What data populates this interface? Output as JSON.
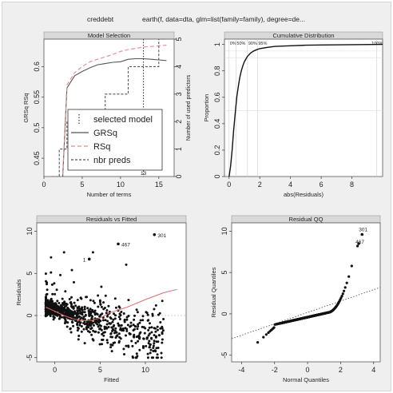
{
  "figure": {
    "title_left": "creddebt",
    "title_right": "earth(f, data=dta, glm=list(family=family), degree=de..."
  },
  "chart_data": [
    {
      "type": "line",
      "title": "Model Selection",
      "xlabel": "Number of terms",
      "ylabel": "GRSq    RSq",
      "y2label": "Number of used predictors",
      "xlim": [
        0,
        17
      ],
      "ylim": [
        0.42,
        0.645
      ],
      "y2lim": [
        0,
        5
      ],
      "xticks": [
        0,
        5,
        10,
        15
      ],
      "yticks": [
        0.45,
        0.5,
        0.55,
        0.6
      ],
      "y2ticks": [
        0,
        1,
        2,
        3,
        4,
        5
      ],
      "selected_terms": 13,
      "selected_label": "13",
      "series": [
        {
          "name": "GRSq",
          "color": "#555555",
          "dash": "solid",
          "x": [
            1,
            2,
            3,
            4,
            5,
            6,
            7,
            8,
            9,
            10,
            11,
            12,
            13,
            14,
            15,
            16
          ],
          "y": [
            0.0,
            0.0,
            0.565,
            0.585,
            0.592,
            0.598,
            0.603,
            0.605,
            0.607,
            0.608,
            0.612,
            0.613,
            0.613,
            0.612,
            0.611,
            0.61
          ]
        },
        {
          "name": "RSq",
          "color": "#e58a8a",
          "dash": "dashed",
          "x": [
            1,
            2,
            3,
            4,
            5,
            6,
            7,
            8,
            9,
            10,
            11,
            12,
            13,
            14,
            15,
            16
          ],
          "y": [
            0.0,
            0.0,
            0.57,
            0.59,
            0.6,
            0.608,
            0.612,
            0.616,
            0.62,
            0.625,
            0.628,
            0.63,
            0.632,
            0.633,
            0.634,
            0.635
          ]
        },
        {
          "name": "nbr preds",
          "color": "#555555",
          "dash": "dotted",
          "x": [
            1,
            2,
            3,
            4,
            5,
            6,
            7,
            8,
            9,
            10,
            11,
            12,
            13,
            14,
            15,
            16
          ],
          "y": [
            0,
            1,
            2,
            2,
            2,
            2,
            2,
            3,
            3,
            3,
            4,
            4,
            4,
            4,
            5,
            5
          ]
        }
      ],
      "legend": {
        "placement": "left",
        "entries": [
          "selected model",
          "GRSq",
          "RSq",
          "nbr preds"
        ]
      }
    },
    {
      "type": "line",
      "title": "Cumulative Distribution",
      "xlabel": "abs(Residuals)",
      "ylabel": "Proportion",
      "xlim": [
        -0.3,
        10
      ],
      "ylim": [
        0,
        1.04
      ],
      "xticks": [
        0,
        2,
        4,
        6,
        8
      ],
      "yticks": [
        0.0,
        0.2,
        0.4,
        0.6,
        0.8,
        1.0
      ],
      "x": [
        0,
        0.1,
        0.2,
        0.3,
        0.4,
        0.5,
        0.6,
        0.7,
        0.8,
        0.9,
        1.0,
        1.2,
        1.4,
        1.6,
        1.8,
        2.0,
        2.5,
        3.0,
        4.0,
        5.0,
        6.0,
        8.0,
        10.0
      ],
      "y": [
        0,
        0.08,
        0.2,
        0.35,
        0.48,
        0.6,
        0.68,
        0.75,
        0.8,
        0.84,
        0.87,
        0.91,
        0.935,
        0.95,
        0.96,
        0.968,
        0.978,
        0.985,
        0.99,
        0.994,
        0.996,
        0.998,
        1.0
      ],
      "quantile_labels": [
        {
          "label": "0%",
          "x": 0
        },
        {
          "label": "50%",
          "x": 0.45
        },
        {
          "label": "90%",
          "x": 1.2
        },
        {
          "label": "95%",
          "x": 1.85
        },
        {
          "label": "100%",
          "x": 9.6
        }
      ]
    },
    {
      "type": "scatter",
      "title": "Residuals vs Fitted",
      "xlabel": "Fitted",
      "ylabel": "Residuals",
      "xlim": [
        -2,
        14.5
      ],
      "ylim": [
        -5.5,
        11
      ],
      "xticks": [
        0,
        5,
        10
      ],
      "yticks": [
        -5,
        0,
        5,
        10
      ],
      "smooth": {
        "x": [
          -1,
          0,
          1,
          2,
          3,
          4,
          5,
          6,
          8,
          10,
          12,
          13.5
        ],
        "y": [
          1.0,
          0.5,
          0.0,
          -0.4,
          -0.6,
          -0.6,
          -0.3,
          0.3,
          1.0,
          1.9,
          2.7,
          3.1
        ]
      },
      "labeled_points": [
        {
          "label": "301",
          "x": 11.0,
          "y": 9.6
        },
        {
          "label": "467",
          "x": 7.0,
          "y": 8.5
        },
        {
          "label": "1",
          "x": 3.8,
          "y": 6.7
        }
      ],
      "points_note": "approx 900 points sampled below"
    },
    {
      "type": "scatter",
      "title": "Residual QQ",
      "xlabel": "Normal Quantiles",
      "ylabel": "Residual Quantiles",
      "xlim": [
        -4.6,
        4.4
      ],
      "ylim": [
        -5.8,
        11
      ],
      "xticks": [
        -4,
        -2,
        0,
        2,
        4
      ],
      "yticks": [
        -5,
        0,
        5,
        10
      ],
      "reference_line": {
        "x": [
          -4.6,
          4.4
        ],
        "y": [
          -3.0,
          3.2
        ]
      },
      "labeled_points": [
        {
          "label": "301",
          "x": 3.3,
          "y": 9.6
        },
        {
          "label": "467",
          "x": 3.1,
          "y": 8.5
        }
      ]
    }
  ]
}
